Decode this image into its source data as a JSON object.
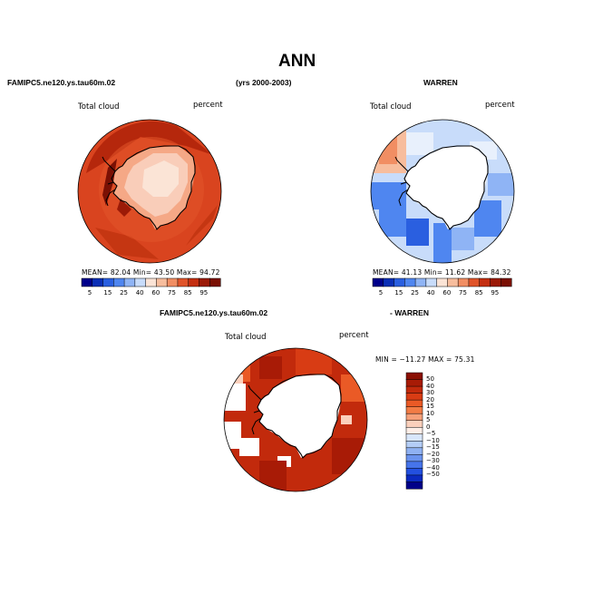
{
  "page": {
    "title": "ANN",
    "panel1_header": "FAMIPC5.ne120.ys.tau60m.02",
    "years_header": "(yrs 2000-2003)",
    "panel2_header": "WARREN",
    "panel3_header_left": "FAMIPC5.ne120.ys.tau60m.02",
    "panel3_header_right": "- WARREN"
  },
  "panels": [
    {
      "variable": "Total cloud",
      "units": "percent",
      "stats_text": "MEAN=  82.04   Min=  43.50   Max=  94.72"
    },
    {
      "variable": "Total cloud",
      "units": "percent",
      "stats_text": "MEAN=  41.13   Min=  11.62   Max=  84.32"
    },
    {
      "variable": "Total cloud",
      "units": "percent",
      "stats_text": "MIN = −11.27  MAX =  75.31"
    }
  ],
  "colorbar_horizontal": {
    "labels": [
      "5",
      "15",
      "25",
      "40",
      "60",
      "75",
      "85",
      "95"
    ],
    "colors": [
      "#00008b",
      "#0b2fb6",
      "#2a5fe0",
      "#4f86f0",
      "#8fb4f5",
      "#c8dcfa",
      "#fbe4d6",
      "#f7bd9d",
      "#f18e63",
      "#e0542a",
      "#c42f11",
      "#9b1a07",
      "#7a1004"
    ]
  },
  "colorbar_vertical": {
    "labels": [
      "50",
      "40",
      "30",
      "20",
      "15",
      "10",
      "5",
      "0",
      "−5",
      "−10",
      "−15",
      "−20",
      "−30",
      "−40",
      "−50"
    ],
    "colors": [
      "#8b1004",
      "#a81b06",
      "#c22a0c",
      "#d83c14",
      "#ea5a26",
      "#f27c45",
      "#f6a07a",
      "#fbd0bc",
      "#fdeee7",
      "#d8e6fb",
      "#b4cdf7",
      "#8fb1f2",
      "#6b93ee",
      "#4674ea",
      "#2350e0",
      "#0b2ac0",
      "#000088"
    ]
  }
}
